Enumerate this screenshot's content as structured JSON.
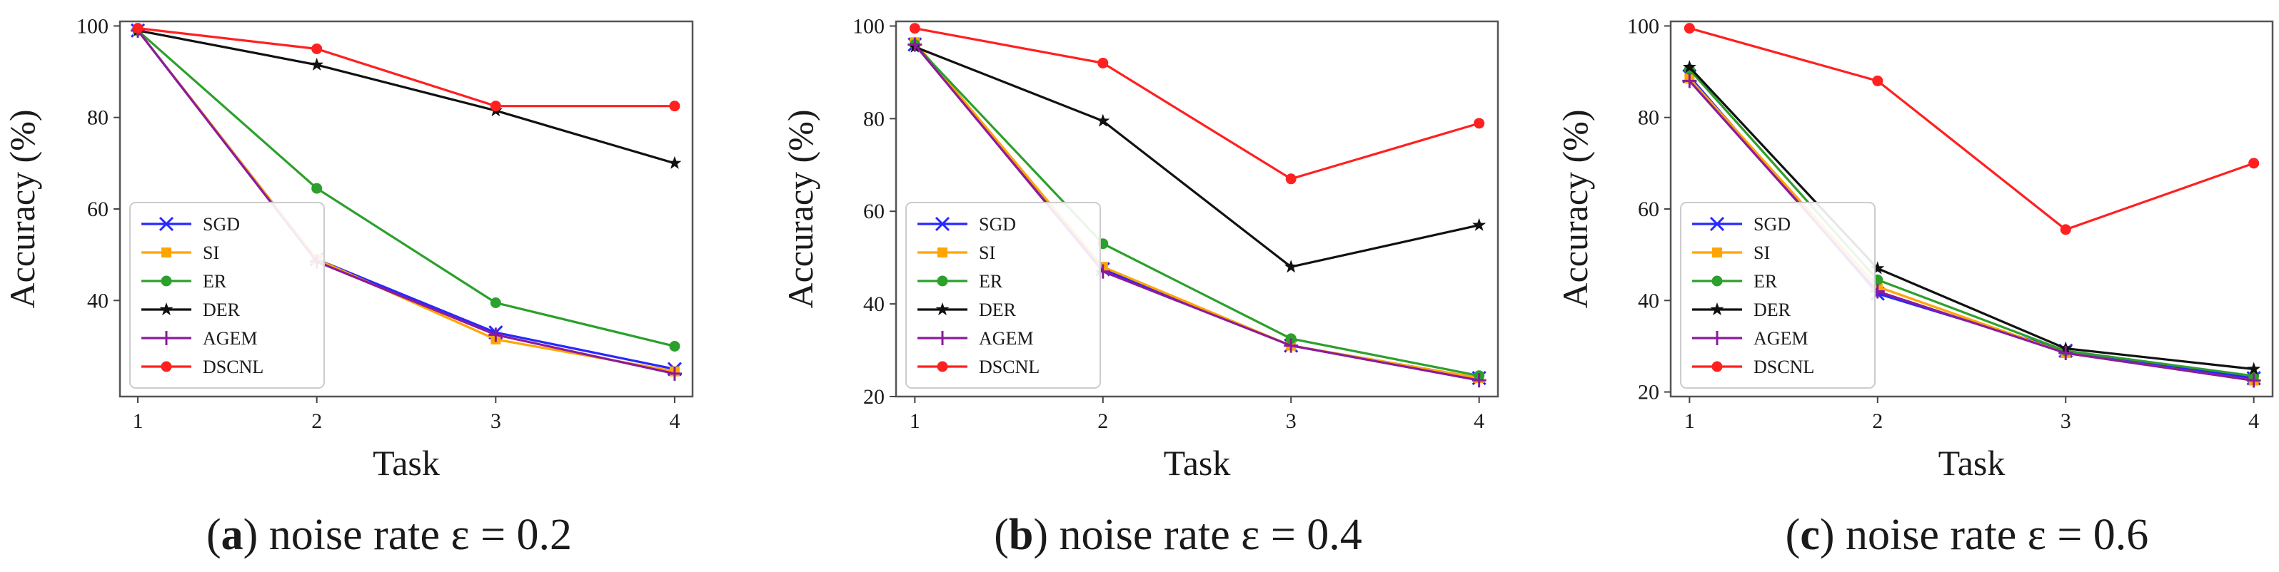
{
  "figure": {
    "panels": [
      {
        "caption_letter": "a",
        "caption_text": "noise rate ε = 0.2"
      },
      {
        "caption_letter": "b",
        "caption_text": "noise rate ε = 0.4"
      },
      {
        "caption_letter": "c",
        "caption_text": "noise rate ε = 0.6"
      }
    ]
  },
  "chart_data": [
    {
      "type": "line",
      "title": "",
      "xlabel": "Task",
      "ylabel": "Accuracy (%)",
      "x": [
        1,
        2,
        3,
        4
      ],
      "xlim": [
        0.9,
        4.1
      ],
      "ylim": [
        19,
        101
      ],
      "yticks": [
        40,
        60,
        80,
        100
      ],
      "legend_position": "lower-left",
      "series": [
        {
          "name": "SGD",
          "color": "#2828ff",
          "marker": "x",
          "values": [
            99,
            49,
            33,
            25
          ]
        },
        {
          "name": "SI",
          "color": "#ffa500",
          "marker": "square",
          "values": [
            99,
            49,
            31.5,
            24.5
          ]
        },
        {
          "name": "ER",
          "color": "#2ca02c",
          "marker": "circle",
          "values": [
            99,
            64.5,
            39.5,
            30
          ]
        },
        {
          "name": "DER",
          "color": "#111111",
          "marker": "star",
          "values": [
            99,
            91.5,
            81.5,
            70
          ]
        },
        {
          "name": "AGEM",
          "color": "#8b1a9c",
          "marker": "plus",
          "values": [
            99,
            48.5,
            32.5,
            24
          ]
        },
        {
          "name": "DSCNL",
          "color": "#ff2020",
          "marker": "circle",
          "values": [
            99.5,
            95,
            82.5,
            82.5
          ]
        }
      ]
    },
    {
      "type": "line",
      "title": "",
      "xlabel": "Task",
      "ylabel": "Accuracy (%)",
      "x": [
        1,
        2,
        3,
        4
      ],
      "xlim": [
        0.9,
        4.1
      ],
      "ylim": [
        20,
        101
      ],
      "yticks": [
        20,
        40,
        60,
        80,
        100
      ],
      "legend_position": "lower-left",
      "series": [
        {
          "name": "SGD",
          "color": "#2828ff",
          "marker": "x",
          "values": [
            96,
            47.5,
            31,
            24
          ]
        },
        {
          "name": "SI",
          "color": "#ffa500",
          "marker": "square",
          "values": [
            96.5,
            48,
            31,
            24
          ]
        },
        {
          "name": "ER",
          "color": "#2ca02c",
          "marker": "circle",
          "values": [
            96,
            53,
            32.5,
            24.5
          ]
        },
        {
          "name": "DER",
          "color": "#111111",
          "marker": "star",
          "values": [
            95.5,
            79.5,
            48,
            57
          ]
        },
        {
          "name": "AGEM",
          "color": "#8b1a9c",
          "marker": "plus",
          "values": [
            96,
            47,
            31,
            23.5
          ]
        },
        {
          "name": "DSCNL",
          "color": "#ff2020",
          "marker": "circle",
          "values": [
            99.5,
            92,
            67,
            79
          ]
        }
      ]
    },
    {
      "type": "line",
      "title": "",
      "xlabel": "Task",
      "ylabel": "Accuracy (%)",
      "x": [
        1,
        2,
        3,
        4
      ],
      "xlim": [
        0.9,
        4.1
      ],
      "ylim": [
        19,
        101
      ],
      "yticks": [
        20,
        40,
        60,
        80,
        100
      ],
      "legend_position": "lower-left",
      "series": [
        {
          "name": "SGD",
          "color": "#2828ff",
          "marker": "x",
          "values": [
            89,
            41.5,
            29,
            23
          ]
        },
        {
          "name": "SI",
          "color": "#ffa500",
          "marker": "square",
          "values": [
            88.5,
            43,
            28.5,
            22.5
          ]
        },
        {
          "name": "ER",
          "color": "#2ca02c",
          "marker": "circle",
          "values": [
            90.5,
            44.5,
            29,
            23.5
          ]
        },
        {
          "name": "DER",
          "color": "#111111",
          "marker": "star",
          "values": [
            91,
            47,
            29.5,
            25
          ]
        },
        {
          "name": "AGEM",
          "color": "#8b1a9c",
          "marker": "plus",
          "values": [
            88,
            42,
            28.5,
            22.5
          ]
        },
        {
          "name": "DSCNL",
          "color": "#ff2020",
          "marker": "circle",
          "values": [
            99.5,
            88,
            55.5,
            70
          ]
        }
      ]
    }
  ]
}
